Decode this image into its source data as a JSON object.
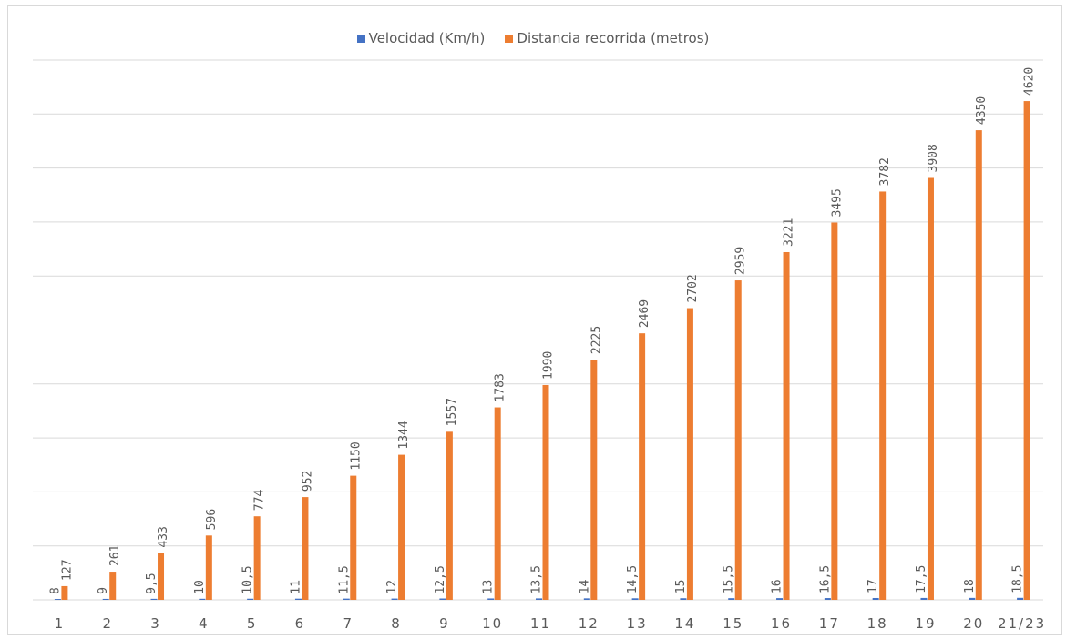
{
  "chart_data": {
    "type": "bar",
    "categories": [
      "1",
      "2",
      "3",
      "4",
      "5",
      "6",
      "7",
      "8",
      "9",
      "10",
      "11",
      "12",
      "13",
      "14",
      "15",
      "16",
      "17",
      "18",
      "19",
      "20",
      "21/23"
    ],
    "series": [
      {
        "name": "Velocidad (Km/h)",
        "color": "#4472c4",
        "values": [
          8,
          9,
          9.5,
          10,
          10.5,
          11,
          11.5,
          12,
          12.5,
          13,
          13.5,
          14,
          14.5,
          15,
          15.5,
          16,
          16.5,
          17,
          17.5,
          18,
          18.5
        ],
        "labels": [
          "8",
          "9",
          "9,5",
          "10",
          "10,5",
          "11",
          "11,5",
          "12",
          "12,5",
          "13",
          "13,5",
          "14",
          "14,5",
          "15",
          "15,5",
          "16",
          "16,5",
          "17",
          "17,5",
          "18",
          "18,5"
        ]
      },
      {
        "name": "Distancia recorrida (metros)",
        "color": "#ed7d31",
        "values": [
          127,
          261,
          433,
          596,
          774,
          952,
          1150,
          1344,
          1557,
          1783,
          1990,
          2225,
          2469,
          2702,
          2959,
          3221,
          3495,
          3782,
          3908,
          4350,
          4620
        ],
        "labels": [
          "127",
          "261",
          "433",
          "596",
          "774",
          "952",
          "1150",
          "1344",
          "1557",
          "1783",
          "1990",
          "2225",
          "2469",
          "2702",
          "2959",
          "3221",
          "3495",
          "3782",
          "3908",
          "4350",
          "4620"
        ]
      }
    ],
    "ylim": [
      0,
      5000
    ],
    "gridlines": true,
    "grid_step": 500,
    "y_tick_labels_visible": false,
    "legend_position": "top"
  }
}
